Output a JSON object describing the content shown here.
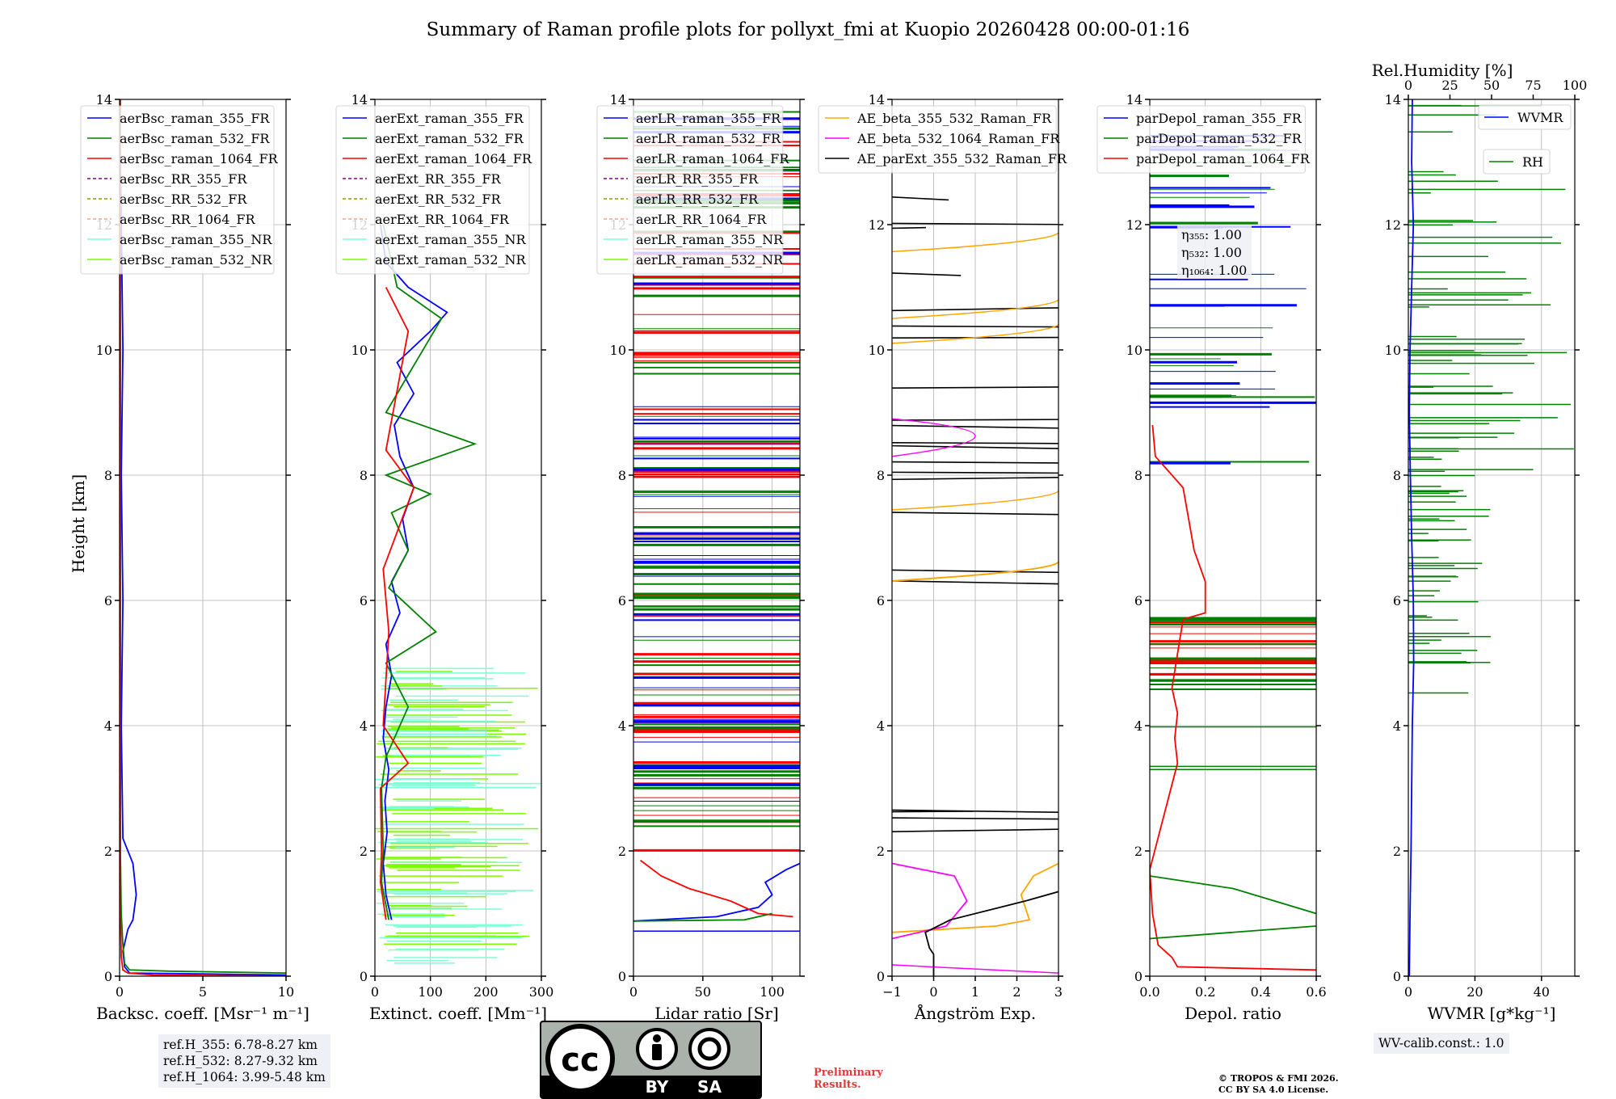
{
  "title": "Summary of Raman profile plots for pollyxt_fmi at Kuopio 20260428 00:00-01:16",
  "y_label": "Height [km]",
  "y_ticks": [
    "0",
    "2",
    "4",
    "6",
    "8",
    "10",
    "12",
    "14"
  ],
  "colors": {
    "blue": "#0000ff",
    "green": "#008000",
    "red": "#ff0000",
    "purple": "#800080",
    "olive": "#999900",
    "salmon": "#ffa07a",
    "cyan": "#7fffd4",
    "lightgreen": "#7cfc00",
    "orange": "#ffa500",
    "magenta": "#ff00ff",
    "black": "#000000"
  },
  "chart_data": [
    {
      "type": "line",
      "name": "backscatter",
      "xlabel": "Backsc. coeff. [Msr⁻¹ m⁻¹]",
      "xlim": [
        0,
        10
      ],
      "ylim": [
        0,
        14
      ],
      "x_ticks": [
        "0",
        "5",
        "10"
      ],
      "legend": [
        "aerBsc_raman_355_FR",
        "aerBsc_raman_532_FR",
        "aerBsc_raman_1064_FR",
        "aerBsc_RR_355_FR",
        "aerBsc_RR_532_FR",
        "aerBsc_RR_1064_FR",
        "aerBsc_raman_355_NR",
        "aerBsc_raman_532_NR"
      ],
      "series": [
        {
          "name": "aerBsc_raman_355_FR",
          "color": "blue",
          "points": [
            [
              10,
              0.02
            ],
            [
              0.6,
              0.05
            ],
            [
              0.3,
              0.15
            ],
            [
              0.2,
              0.4
            ],
            [
              0.5,
              0.75
            ],
            [
              0.8,
              0.9
            ],
            [
              1.0,
              1.3
            ],
            [
              0.8,
              1.8
            ],
            [
              0.2,
              2.2
            ],
            [
              0.1,
              4
            ],
            [
              0.2,
              6
            ],
            [
              0.1,
              8
            ],
            [
              0.2,
              10
            ],
            [
              0.1,
              12
            ],
            [
              0,
              14
            ]
          ]
        },
        {
          "name": "aerBsc_raman_532_FR",
          "color": "green",
          "points": [
            [
              10,
              0.05
            ],
            [
              3,
              0.08
            ],
            [
              0.6,
              0.1
            ],
            [
              0.3,
              0.2
            ],
            [
              0.2,
              0.5
            ],
            [
              0.1,
              1
            ],
            [
              0.05,
              2
            ],
            [
              0.05,
              14
            ]
          ]
        },
        {
          "name": "aerBsc_raman_1064_FR",
          "color": "red",
          "points": [
            [
              10,
              0.0
            ],
            [
              2,
              0.02
            ],
            [
              0.5,
              0.05
            ],
            [
              0.2,
              0.1
            ],
            [
              0.1,
              0.3
            ],
            [
              0.05,
              1
            ],
            [
              0.03,
              14
            ]
          ]
        }
      ]
    },
    {
      "type": "line",
      "name": "extinction",
      "xlabel": "Extinct. coeff. [Mm⁻¹]",
      "xlim": [
        0,
        300
      ],
      "ylim": [
        0,
        14
      ],
      "x_ticks": [
        "0",
        "100",
        "200",
        "300"
      ],
      "legend": [
        "aerExt_raman_355_FR",
        "aerExt_raman_532_FR",
        "aerExt_raman_1064_FR",
        "aerExt_RR_355_FR",
        "aerExt_RR_532_FR",
        "aerExt_RR_1064_FR",
        "aerExt_raman_355_NR",
        "aerExt_raman_532_NR"
      ],
      "series": [
        {
          "name": "aerExt_raman_355_FR",
          "color": "blue",
          "points": [
            [
              30,
              0.9
            ],
            [
              20,
              1.3
            ],
            [
              15,
              1.8
            ],
            [
              22,
              2.3
            ],
            [
              18,
              2.8
            ],
            [
              25,
              3.3
            ],
            [
              15,
              3.8
            ],
            [
              20,
              4.3
            ],
            [
              30,
              4.8
            ],
            [
              20,
              5.3
            ],
            [
              45,
              5.8
            ],
            [
              30,
              6.3
            ],
            [
              60,
              6.8
            ],
            [
              50,
              7.3
            ],
            [
              70,
              7.8
            ],
            [
              45,
              8.3
            ],
            [
              35,
              8.8
            ],
            [
              70,
              9.3
            ],
            [
              40,
              9.8
            ],
            [
              100,
              10.3
            ],
            [
              130,
              10.6
            ],
            [
              60,
              11.0
            ],
            [
              20,
              11.4
            ],
            [
              10,
              12
            ]
          ]
        },
        {
          "name": "aerExt_raman_532_FR",
          "color": "green",
          "points": [
            [
              25,
              0.9
            ],
            [
              12,
              1.5
            ],
            [
              15,
              2.0
            ],
            [
              12,
              3.0
            ],
            [
              20,
              3.5
            ],
            [
              60,
              4.3
            ],
            [
              20,
              5.0
            ],
            [
              110,
              5.5
            ],
            [
              25,
              6.2
            ],
            [
              60,
              6.8
            ],
            [
              30,
              7.4
            ],
            [
              100,
              7.7
            ],
            [
              20,
              8.0
            ],
            [
              180,
              8.5
            ],
            [
              20,
              9.0
            ],
            [
              120,
              10.5
            ],
            [
              40,
              11.0
            ],
            [
              15,
              12
            ]
          ]
        },
        {
          "name": "aerExt_raman_1064_FR",
          "color": "red",
          "points": [
            [
              20,
              0.9
            ],
            [
              10,
              1.5
            ],
            [
              12,
              2.0
            ],
            [
              10,
              3.0
            ],
            [
              60,
              3.4
            ],
            [
              15,
              4.0
            ],
            [
              25,
              5.5
            ],
            [
              15,
              6.5
            ],
            [
              70,
              7.8
            ],
            [
              20,
              8.4
            ],
            [
              60,
              10.3
            ],
            [
              20,
              11.0
            ]
          ]
        }
      ]
    },
    {
      "type": "line",
      "name": "lidar_ratio",
      "xlabel": "Lidar ratio [Sr]",
      "xlim": [
        0,
        120
      ],
      "ylim": [
        0,
        14
      ],
      "x_ticks": [
        "0",
        "50",
        "100"
      ],
      "legend": [
        "aerLR_raman_355_FR",
        "aerLR_raman_532_FR",
        "aerLR_raman_1064_FR",
        "aerLR_RR_355_FR",
        "aerLR_RR_532_FR",
        "aerLR_RR_1064_FR",
        "aerLR_raman_355_NR",
        "aerLR_raman_532_NR"
      ],
      "series": [
        {
          "name": "aerLR_raman_355_FR",
          "color": "blue",
          "points": [
            [
              0,
              0.88
            ],
            [
              60,
              0.95
            ],
            [
              90,
              1.1
            ],
            [
              100,
              1.3
            ],
            [
              95,
              1.5
            ],
            [
              110,
              1.7
            ],
            [
              120,
              1.8
            ]
          ]
        },
        {
          "name": "aerLR_raman_532_FR",
          "color": "green",
          "points": [
            [
              0,
              0.88
            ],
            [
              80,
              0.9
            ],
            [
              100,
              1.0
            ]
          ]
        },
        {
          "name": "aerLR_raman_1064_FR",
          "color": "red",
          "points": [
            [
              115,
              0.95
            ],
            [
              90,
              1.0
            ],
            [
              70,
              1.2
            ],
            [
              40,
              1.4
            ],
            [
              20,
              1.6
            ],
            [
              5,
              1.85
            ]
          ]
        }
      ]
    },
    {
      "type": "line",
      "name": "angstrom",
      "xlabel": "Ångström Exp.",
      "xlim": [
        -1,
        3
      ],
      "ylim": [
        0,
        14
      ],
      "x_ticks": [
        "−1",
        "0",
        "1",
        "2",
        "3"
      ],
      "legend": [
        "AE_beta_355_532_Raman_FR",
        "AE_beta_532_1064_Raman_FR",
        "AE_parExt_355_532_Raman_FR"
      ],
      "series": [
        {
          "name": "AE_beta_355_532_Raman_FR",
          "color": "orange",
          "points": [
            [
              -1,
              0.7
            ],
            [
              1.5,
              0.8
            ],
            [
              2.3,
              0.9
            ],
            [
              2.1,
              1.3
            ],
            [
              2.4,
              1.6
            ],
            [
              3,
              1.8
            ]
          ]
        },
        {
          "name": "AE_beta_532_1064_Raman_FR",
          "color": "magenta",
          "points": [
            [
              -1,
              0.6
            ],
            [
              0.3,
              0.8
            ],
            [
              0.8,
              1.2
            ],
            [
              0.5,
              1.6
            ],
            [
              -1,
              1.8
            ]
          ]
        },
        {
          "name": "AE_parExt_355_532_Raman_FR",
          "color": "black",
          "points": [
            [
              0,
              0
            ],
            [
              0,
              0.35
            ],
            [
              -0.1,
              0.45
            ],
            [
              -0.2,
              0.7
            ],
            [
              0.4,
              0.9
            ],
            [
              2.2,
              1.2
            ],
            [
              3,
              1.35
            ]
          ]
        }
      ]
    },
    {
      "type": "line",
      "name": "depol",
      "xlabel": "Depol. ratio",
      "xlim": [
        0,
        0.6
      ],
      "ylim": [
        0,
        14
      ],
      "x_ticks": [
        "0.0",
        "0.2",
        "0.4",
        "0.6"
      ],
      "legend": [
        "parDepol_raman_355_FR",
        "parDepol_raman_532_FR",
        "parDepol_raman_1064_FR"
      ],
      "annotations": [
        "η₃₅₅: 1.00",
        "η₅₃₂: 1.00",
        "η₁₀₆₄: 1.00"
      ],
      "series": [
        {
          "name": "parDepol_raman_1064_FR",
          "color": "red",
          "points": [
            [
              0.6,
              0.1
            ],
            [
              0.1,
              0.15
            ],
            [
              0.08,
              0.3
            ],
            [
              0.03,
              0.5
            ],
            [
              0.01,
              1.0
            ],
            [
              0,
              1.7
            ],
            [
              0.1,
              3.4
            ],
            [
              0.09,
              3.8
            ],
            [
              0.1,
              4.2
            ],
            [
              0.08,
              4.6
            ],
            [
              0.12,
              5.7
            ],
            [
              0.2,
              5.8
            ],
            [
              0.2,
              6.3
            ],
            [
              0.16,
              6.8
            ],
            [
              0.14,
              7.3
            ],
            [
              0.12,
              7.8
            ],
            [
              0.08,
              8.0
            ],
            [
              0.02,
              8.3
            ],
            [
              0.01,
              8.8
            ]
          ]
        },
        {
          "name": "parDepol_raman_532_FR",
          "color": "green",
          "points": [
            [
              0,
              1.6
            ],
            [
              0.3,
              1.4
            ],
            [
              0.6,
              1.0
            ]
          ]
        },
        {
          "name": "parDepol_raman_532_FR_b",
          "color": "green",
          "points": [
            [
              0,
              0.6
            ],
            [
              0.6,
              0.8
            ]
          ]
        }
      ]
    },
    {
      "type": "line",
      "name": "wvmr",
      "xlabel": "WVMR [g*kg⁻¹]",
      "top_xlabel": "Rel.Humidity [%]",
      "xlim": [
        0,
        50
      ],
      "ylim": [
        0,
        14
      ],
      "x_ticks": [
        "0",
        "20",
        "40"
      ],
      "top_ticks": [
        "0",
        "25",
        "50",
        "75",
        "100"
      ],
      "legend": [
        "WVMR",
        "RH"
      ],
      "series": [
        {
          "name": "WVMR",
          "color": "blue",
          "points": [
            [
              0.3,
              0
            ],
            [
              0.5,
              1
            ],
            [
              0.8,
              2
            ],
            [
              1.0,
              3
            ],
            [
              1.2,
              4
            ],
            [
              1.6,
              5
            ],
            [
              1.5,
              6
            ],
            [
              1.0,
              7
            ],
            [
              0.6,
              8
            ],
            [
              0.3,
              9
            ],
            [
              0.5,
              10
            ],
            [
              1.0,
              11
            ],
            [
              1.5,
              12
            ],
            [
              1.0,
              13
            ],
            [
              1.2,
              14
            ]
          ]
        }
      ]
    }
  ],
  "info": {
    "ref_355": "ref.H_355: 6.78-8.27 km",
    "ref_532": "ref.H_532: 8.27-9.32 km",
    "ref_1064": "ref.H_1064: 3.99-5.48 km",
    "wv_calib": "WV-calib.const.: 1.0",
    "preliminary_1": "Preliminary",
    "preliminary_2": "Results.",
    "copyright_1": "© TROPOS & FMI 2026.",
    "copyright_2": "CC BY SA 4.0 License.",
    "cc_text": "cc",
    "by_text": "BY",
    "sa_text": "SA"
  }
}
